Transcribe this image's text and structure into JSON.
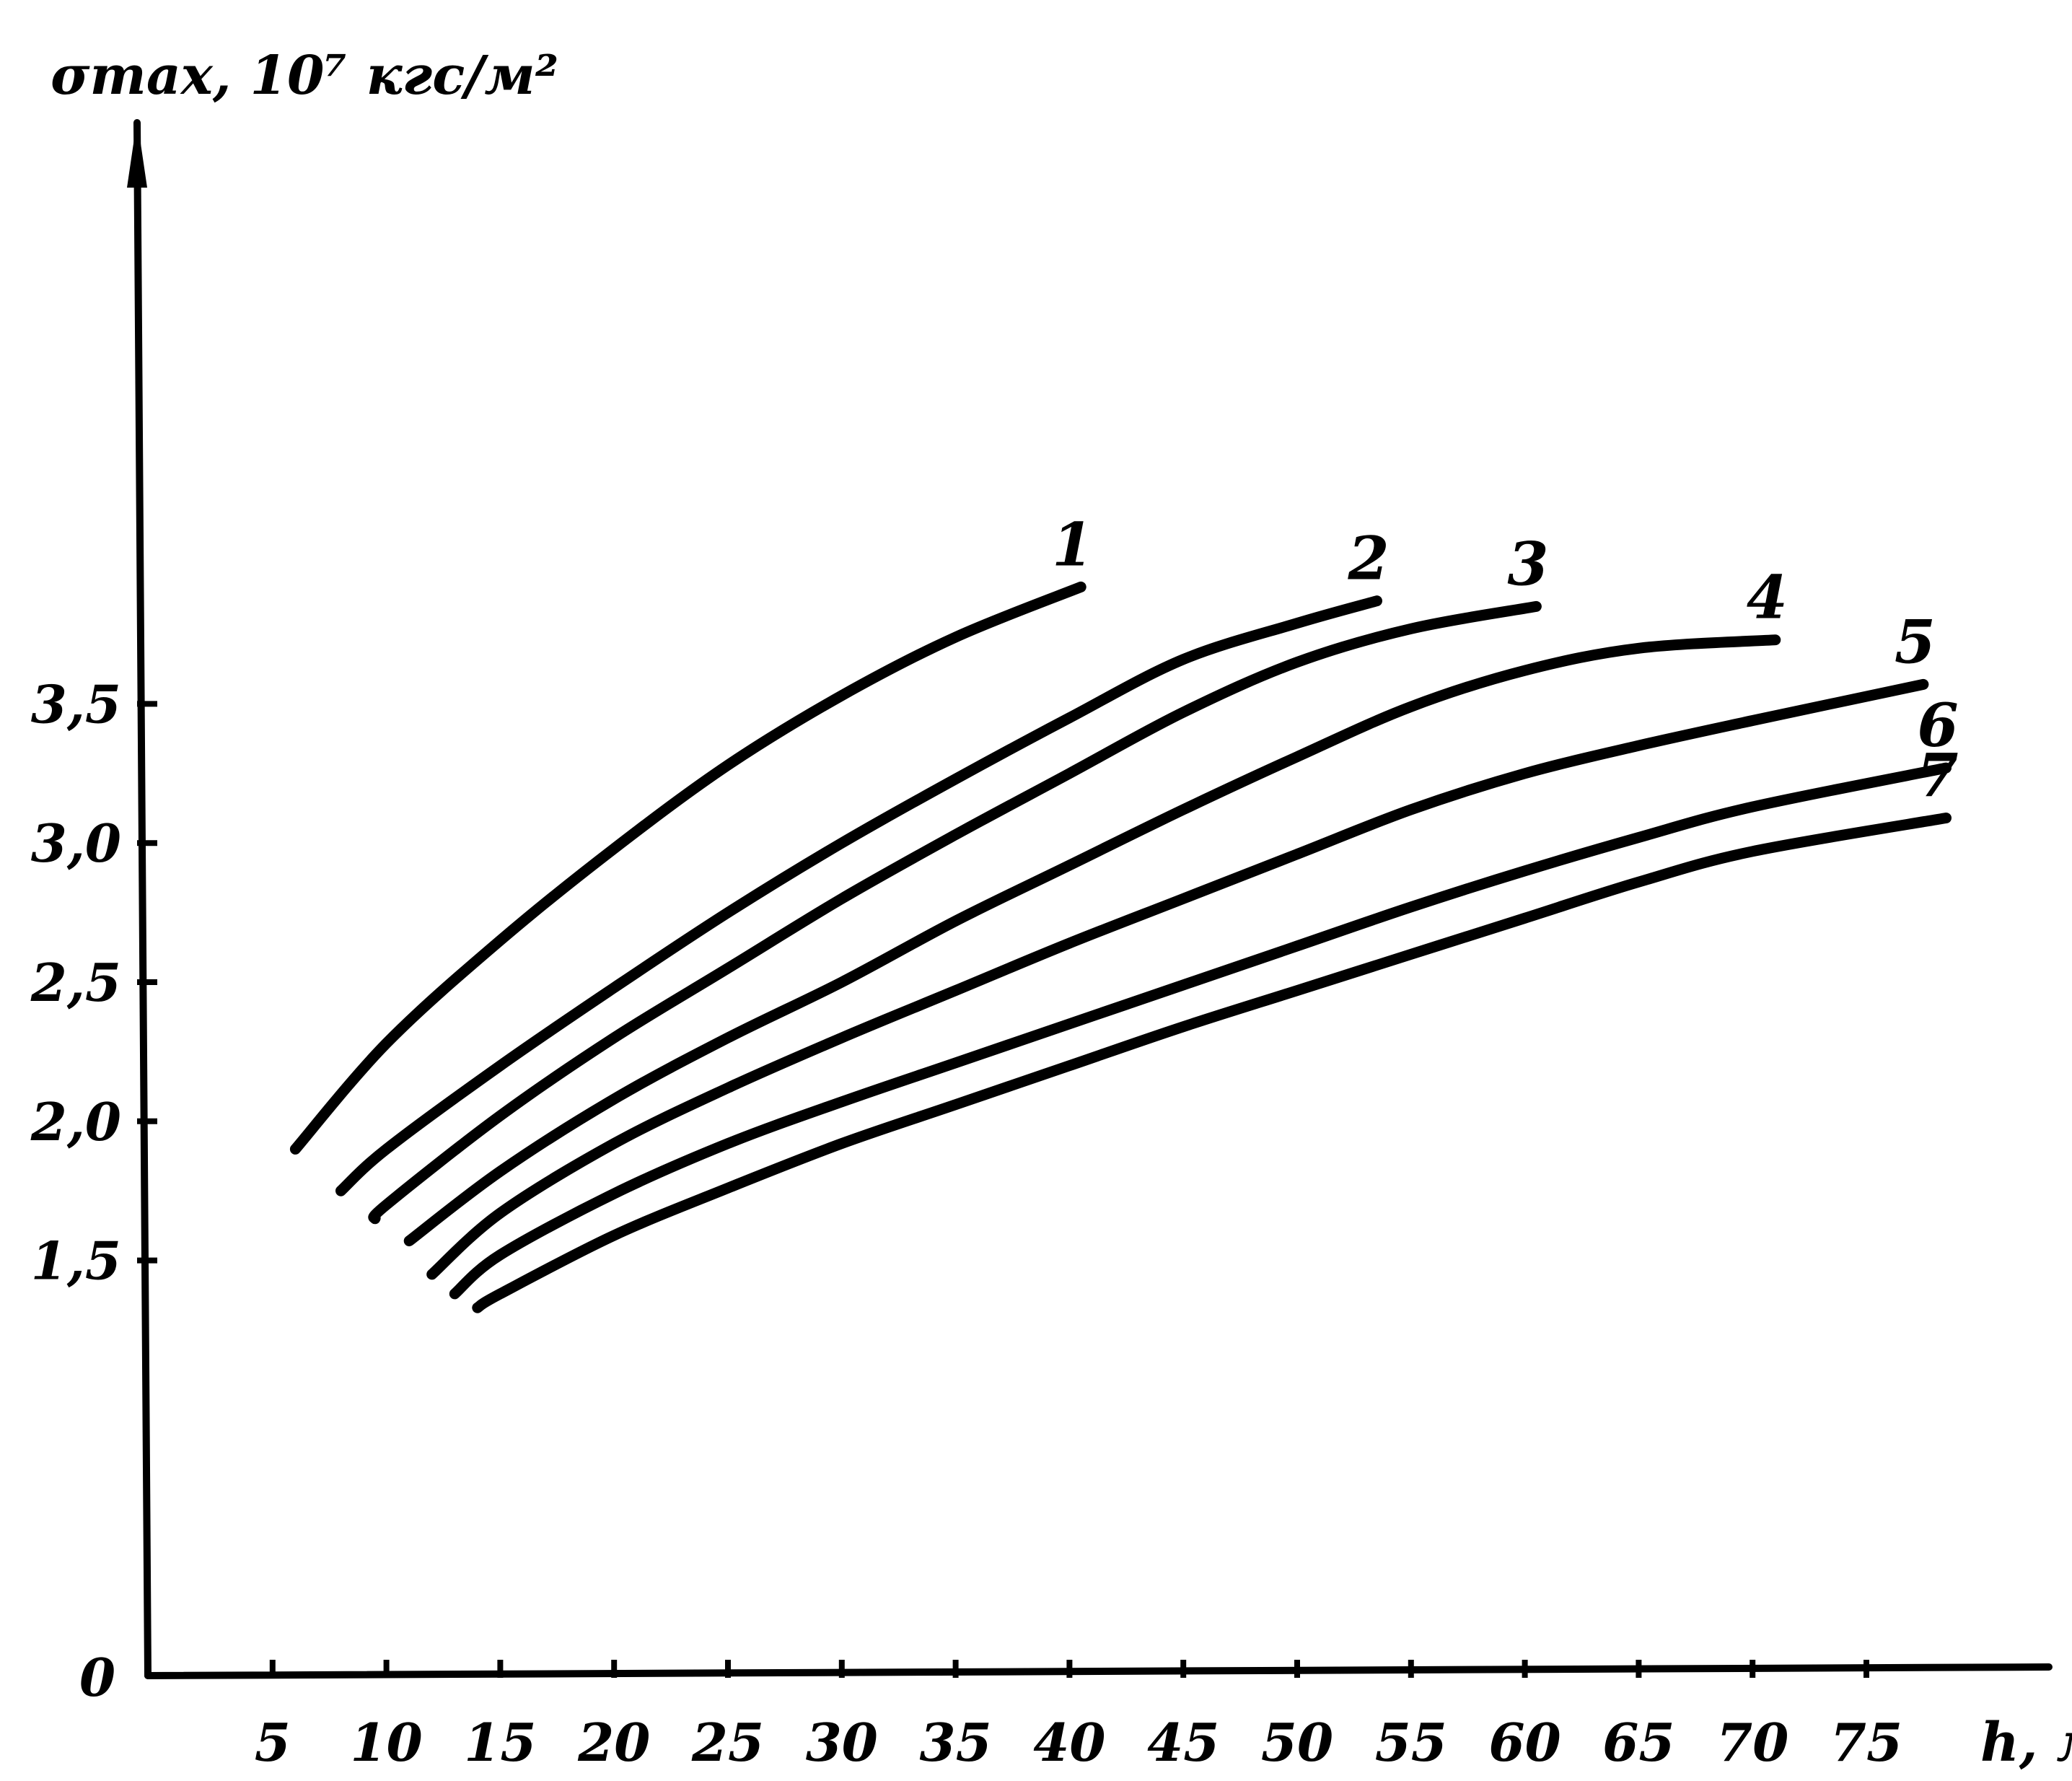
{
  "chart_data": {
    "type": "line",
    "ylabel": "σmax, 10⁷ кгс/м²",
    "xlabel": "h, м",
    "origin_label": "0",
    "xlim": [
      0,
      80
    ],
    "ylim": [
      1.2,
      3.9
    ],
    "x_ticks": [
      5,
      10,
      15,
      20,
      25,
      30,
      35,
      40,
      45,
      50,
      55,
      60,
      65,
      70,
      75
    ],
    "x_tick_labels": [
      "5",
      "10",
      "15",
      "20",
      "25",
      "30",
      "35",
      "40",
      "45",
      "50",
      "55",
      "60",
      "65",
      "70",
      "75"
    ],
    "y_ticks": [
      1.5,
      2.0,
      2.5,
      3.0,
      3.5
    ],
    "y_tick_labels": [
      "1,5",
      "2,0",
      "2,5",
      "3,0",
      "3,5"
    ],
    "grid": false,
    "legend": "none",
    "series": [
      {
        "name": "1",
        "x": [
          6,
          10,
          15,
          20,
          25,
          30,
          35,
          40.5
        ],
        "y": [
          1.9,
          2.28,
          2.65,
          2.98,
          3.28,
          3.53,
          3.74,
          3.92
        ]
      },
      {
        "name": "2",
        "x": [
          8,
          10,
          15,
          20,
          25,
          30,
          35,
          40,
          45,
          50,
          53.5
        ],
        "y": [
          1.75,
          1.9,
          2.2,
          2.48,
          2.75,
          3.0,
          3.23,
          3.45,
          3.66,
          3.79,
          3.87
        ]
      },
      {
        "name": "3",
        "x": [
          9.5,
          10,
          15,
          20,
          25,
          30,
          35,
          40,
          45,
          50,
          55,
          60.5
        ],
        "y": [
          1.65,
          1.7,
          2.02,
          2.3,
          2.55,
          2.8,
          3.03,
          3.25,
          3.47,
          3.65,
          3.77,
          3.85
        ]
      },
      {
        "name": "4",
        "x": [
          11,
          15,
          20,
          25,
          30,
          35,
          40,
          45,
          50,
          55,
          60,
          65,
          71
        ],
        "y": [
          1.57,
          1.82,
          2.08,
          2.3,
          2.5,
          2.72,
          2.92,
          3.12,
          3.31,
          3.49,
          3.62,
          3.7,
          3.73
        ]
      },
      {
        "name": "5",
        "x": [
          12,
          15,
          20,
          25,
          30,
          35,
          40,
          45,
          50,
          55,
          60,
          65,
          70,
          77.5
        ],
        "y": [
          1.45,
          1.67,
          1.92,
          2.12,
          2.3,
          2.47,
          2.64,
          2.8,
          2.96,
          3.12,
          3.25,
          3.35,
          3.44,
          3.57
        ]
      },
      {
        "name": "6",
        "x": [
          13,
          15,
          20,
          25,
          30,
          35,
          40,
          45,
          50,
          55,
          60,
          65,
          70,
          78.5
        ],
        "y": [
          1.38,
          1.52,
          1.74,
          1.92,
          2.07,
          2.21,
          2.35,
          2.49,
          2.63,
          2.77,
          2.9,
          3.02,
          3.13,
          3.27
        ]
      },
      {
        "name": "7",
        "x": [
          14,
          15,
          20,
          25,
          30,
          35,
          40,
          45,
          50,
          55,
          60,
          65,
          70,
          78.5
        ],
        "y": [
          1.33,
          1.38,
          1.59,
          1.76,
          1.92,
          2.06,
          2.2,
          2.34,
          2.47,
          2.6,
          2.73,
          2.86,
          2.97,
          3.09
        ]
      }
    ]
  }
}
